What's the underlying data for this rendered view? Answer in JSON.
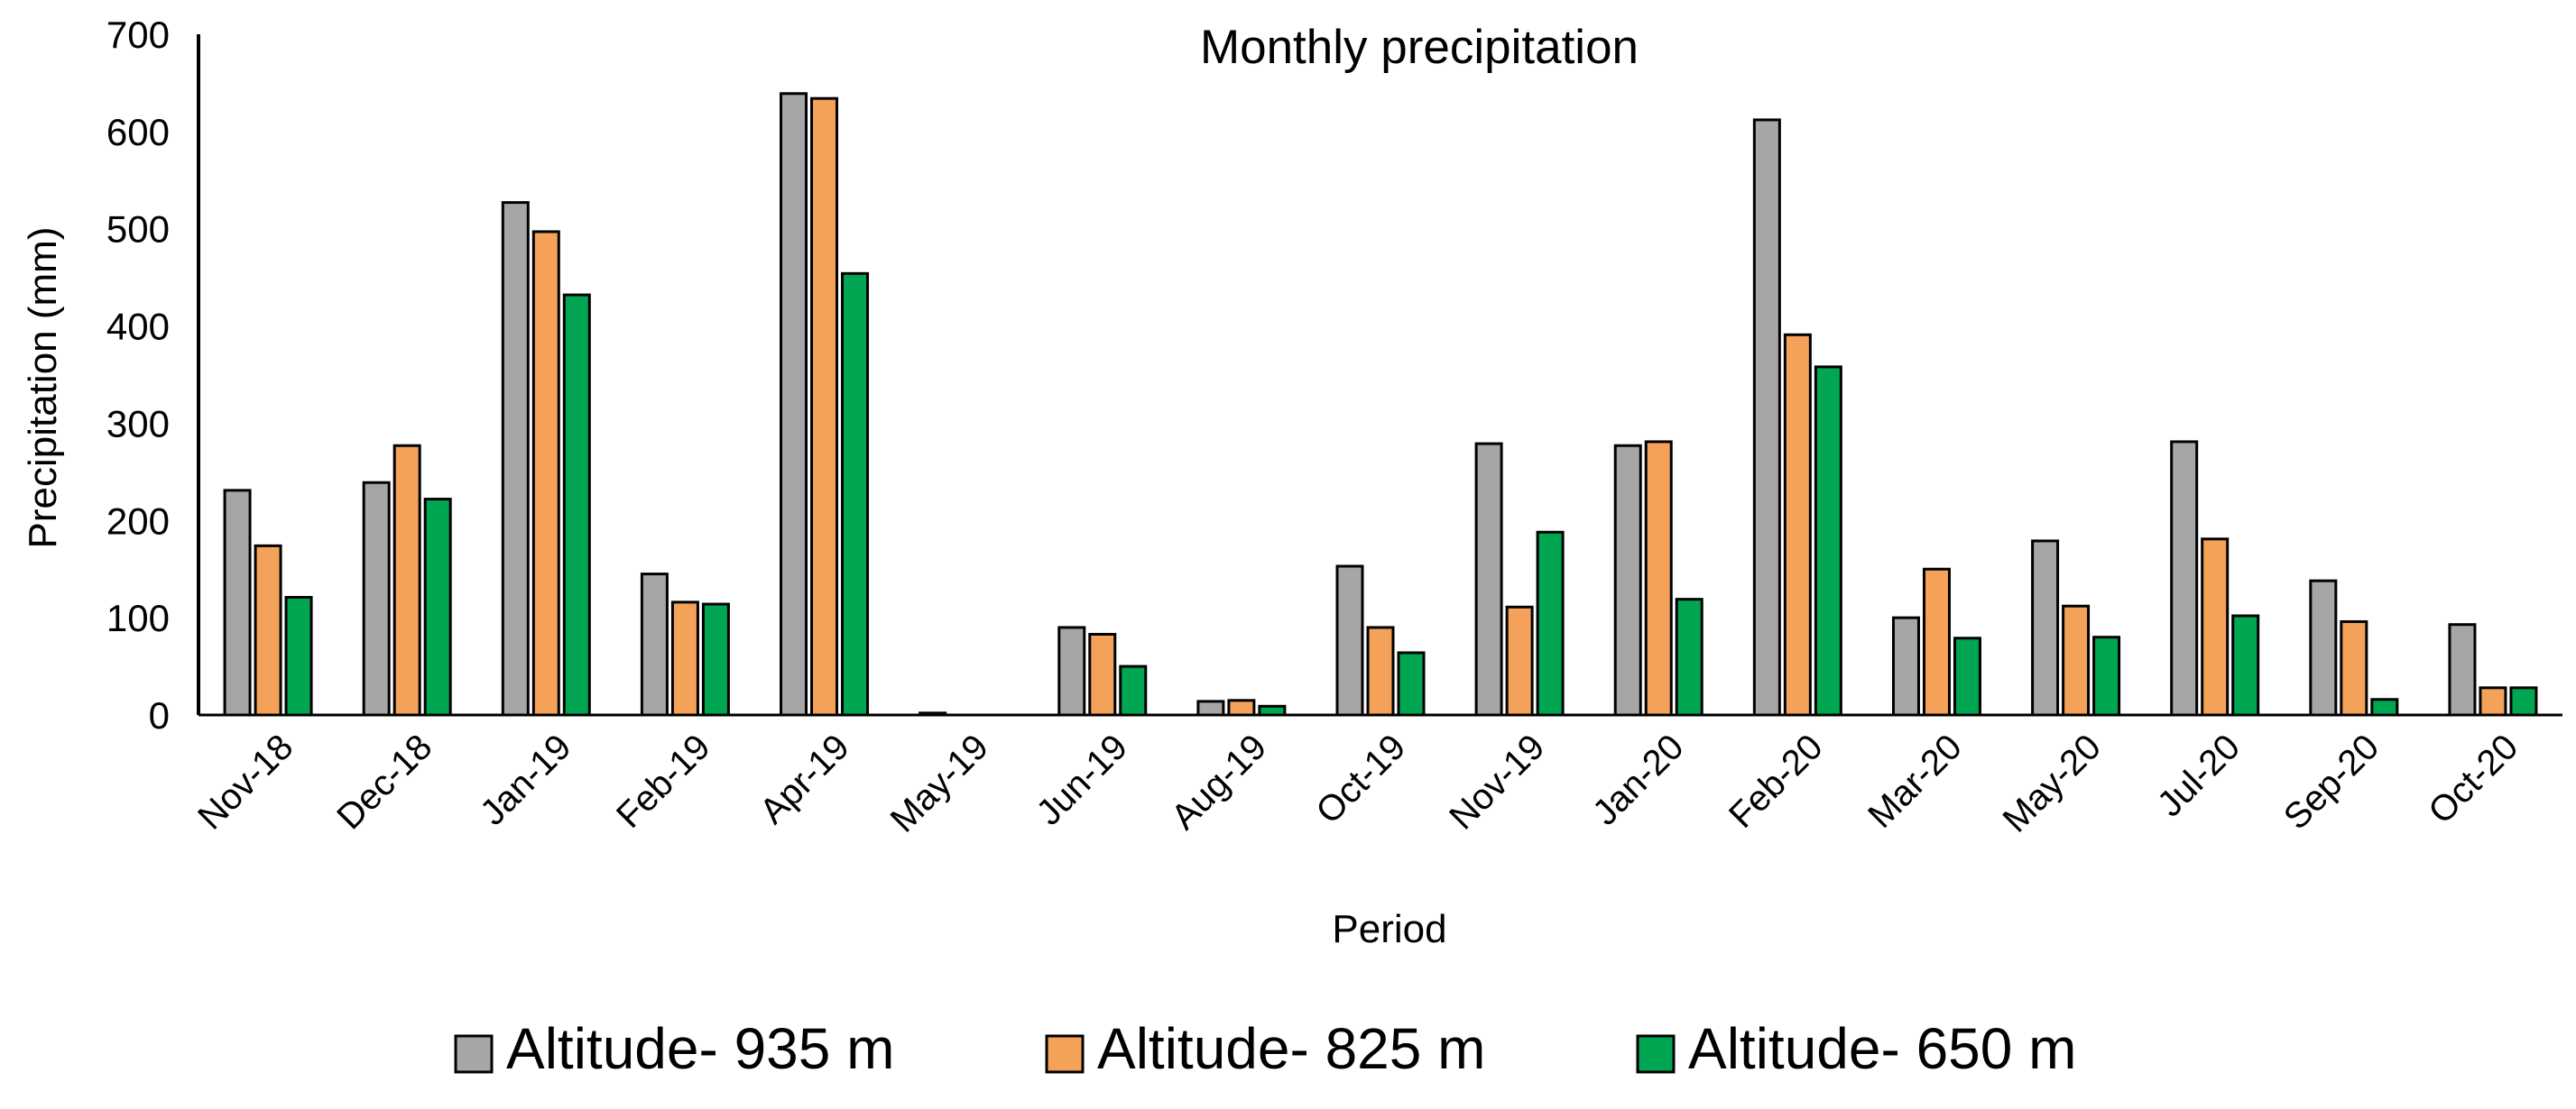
{
  "chart_data": {
    "type": "bar",
    "title": "Monthly precipitation",
    "xlabel": "Period",
    "ylabel": "Precipitation (mm)",
    "ylim": [
      0,
      700
    ],
    "yticks": [
      0,
      100,
      200,
      300,
      400,
      500,
      600,
      700
    ],
    "yticks_labels": [
      "0",
      "100",
      "200",
      "300",
      "400",
      "500",
      "600",
      "700"
    ],
    "grid": false,
    "legend_position": "bottom-center",
    "categories": [
      "Nov-18",
      "Dec-18",
      "Jan-19",
      "Feb-19",
      "Apr-19",
      "May-19",
      "Jun-19",
      "Aug-19",
      "Oct-19",
      "Nov-19",
      "Jan-20",
      "Feb-20",
      "Mar-20",
      "May-20",
      "Jul-20",
      "Sep-20",
      "Oct-20"
    ],
    "series": [
      {
        "name": "Altitude- 935 m",
        "color": "#a6a6a6",
        "values": [
          231,
          239,
          527,
          145,
          639,
          2,
          90,
          14,
          153,
          279,
          277,
          612,
          100,
          179,
          281,
          138,
          93
        ]
      },
      {
        "name": "Altitude- 825 m",
        "color": "#f4a15a",
        "values": [
          174,
          277,
          497,
          116,
          634,
          0,
          83,
          15,
          90,
          111,
          281,
          391,
          150,
          112,
          181,
          96,
          28
        ]
      },
      {
        "name": "Altitude- 650 m",
        "color": "#00a651",
        "values": [
          121,
          222,
          432,
          114,
          454,
          0,
          50,
          9,
          64,
          188,
          119,
          358,
          79,
          80,
          102,
          16,
          28
        ]
      }
    ]
  }
}
